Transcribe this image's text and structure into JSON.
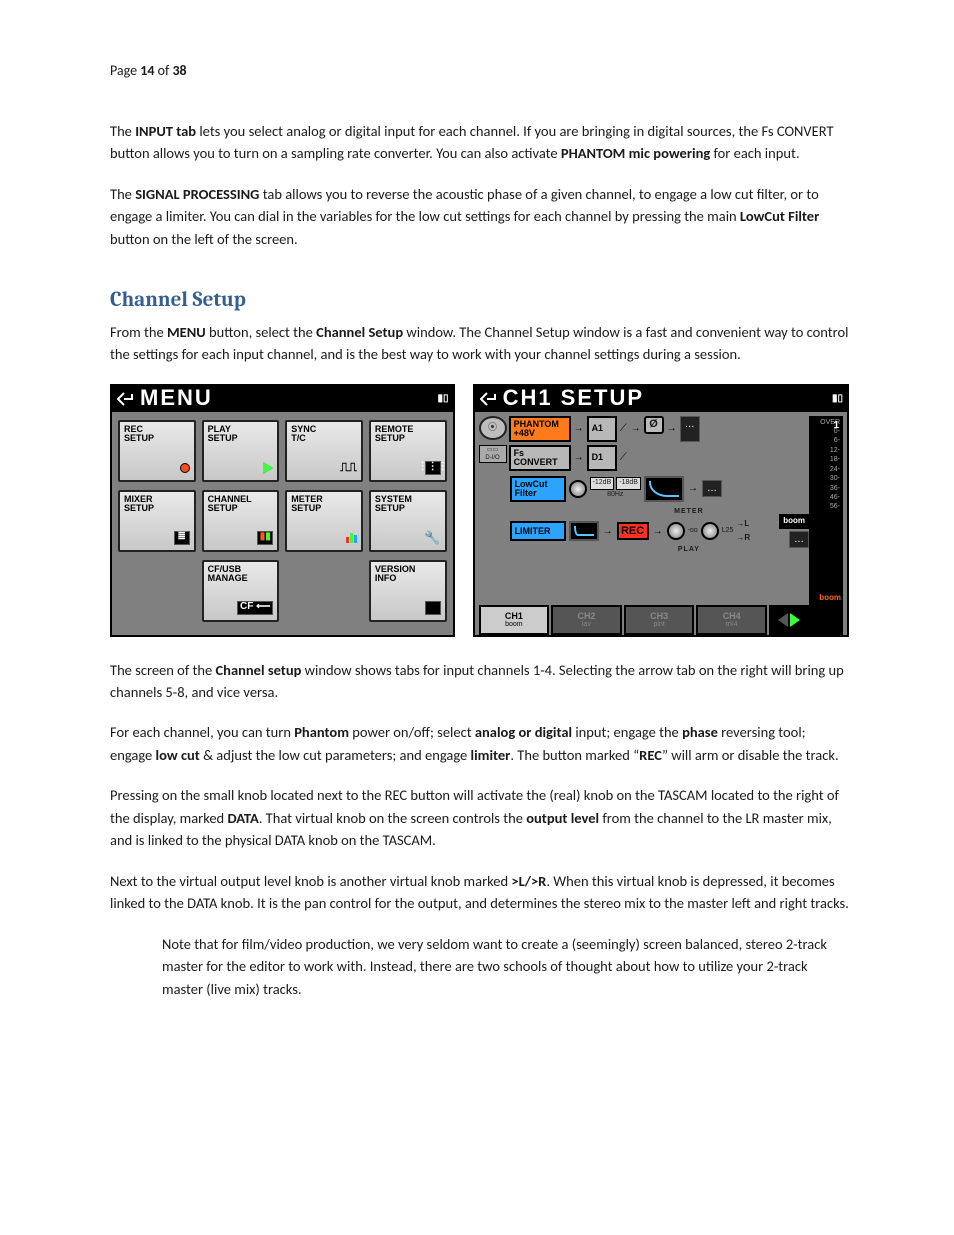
{
  "page_header": {
    "prefix": "Page ",
    "current": "14",
    "mid": " of ",
    "total": "38"
  },
  "para1": {
    "a": "The ",
    "b": "INPUT tab",
    "c": " lets you select analog or digital input for each channel. If you are bringing in digital sources, the Fs CONVERT button allows you to turn on a sampling rate converter. You can also activate ",
    "d": "PHANTOM mic powering",
    "e": " for each input."
  },
  "para2": {
    "a": "The ",
    "b": "SIGNAL PROCESSING",
    "c": " tab allows you to reverse the acoustic phase of a given channel, to engage a low cut filter, or to engage a limiter. You can dial in the variables for the low cut settings for each channel by pressing the main ",
    "d": "LowCut Filter",
    "e": " button on the left of the screen."
  },
  "heading": "Channel Setup",
  "para3": {
    "a": "From the ",
    "b": "MENU",
    "c": " button, select the ",
    "d": "Channel Setup",
    "e": " window. The Channel Setup window is a fast and convenient way to control the settings for each input channel, and is the best way to work with your channel settings during a session."
  },
  "menu_screen": {
    "title": "MENU",
    "buttons": [
      {
        "l1": "REC",
        "l2": "SETUP",
        "icon": "dot-red"
      },
      {
        "l1": "PLAY",
        "l2": "SETUP",
        "icon": "tri-green"
      },
      {
        "l1": "SYNC",
        "l2": "T/C",
        "icon": "wave"
      },
      {
        "l1": "REMOTE",
        "l2": "SETUP",
        "icon": "grid"
      },
      {
        "l1": "MIXER",
        "l2": "SETUP",
        "icon": "sliders"
      },
      {
        "l1": "CHANNEL",
        "l2": "SETUP",
        "icon": "vu"
      },
      {
        "l1": "METER",
        "l2": "SETUP",
        "icon": "bars"
      },
      {
        "l1": "SYSTEM",
        "l2": "SETUP",
        "icon": "wrench"
      },
      null,
      {
        "l1": "CF/USB",
        "l2": "MANAGE",
        "icon": "cfusb"
      },
      null,
      {
        "l1": "VERSION",
        "l2": "INFO",
        "icon": "blank"
      }
    ]
  },
  "ch_screen": {
    "title": "CH1  SETUP",
    "phantom": "PHANTOM",
    "phantom_sub": "+48V",
    "fsconvert": "Fs",
    "fsconvert_sub": "CONVERT",
    "dio": "D-I/O",
    "a1": "A1",
    "d1": "D1",
    "phase": "Ø",
    "lowcut": "LowCut",
    "lowcut_sub": "Filter",
    "hz": "80Hz",
    "db12": "-12dB",
    "db18": "-18dB",
    "limiter": "LIMITER",
    "meter_label": "METER",
    "rec": "REC",
    "play_label": "PLAY",
    "neg_inf": "-oo",
    "pan_center": "L25",
    "lr_l": "→L",
    "lr_r": "→R",
    "boom": "boom",
    "meter_ticks": [
      "OVER",
      "0",
      "6",
      "12",
      "18",
      "24",
      "30",
      "36",
      "46",
      "56"
    ],
    "track_num": "1",
    "tabs": [
      {
        "id": "CH1",
        "sub": "boom",
        "active": true
      },
      {
        "id": "CH2",
        "sub": "lav",
        "active": false
      },
      {
        "id": "CH3",
        "sub": "plnt",
        "active": false
      },
      {
        "id": "CH4",
        "sub": "trk4",
        "active": false
      }
    ]
  },
  "para4": {
    "a": "The screen of the ",
    "b": "Channel setup",
    "c": " window shows tabs for input channels 1-4. Selecting the arrow tab on the right will bring up channels 5-8, and vice versa."
  },
  "para5": {
    "a": "For each channel, you can turn ",
    "b": "Phantom",
    "c": " power on/off; select ",
    "d": "analog or digital",
    "e": " input; engage the ",
    "f": "phase",
    "g": " reversing tool; engage ",
    "h": "low cut",
    "i": " & adjust the low cut parameters; and engage ",
    "j": "limiter",
    "k": ". The button marked “",
    "l": "REC",
    "m": "” will arm or disable the track."
  },
  "para6": {
    "a": "Pressing on the small knob located next to the REC button will activate the (real) knob on the TASCAM located to the right of the display, marked ",
    "b": "DATA",
    "c": ". That virtual knob on the screen controls the ",
    "d": "output level",
    "e": " from the channel to the LR master mix, and is linked to the physical DATA knob on the TASCAM."
  },
  "para7": {
    "a": "Next to the virtual output level knob is another virtual knob marked  ",
    "b": ">L/>R",
    "c": ".  When this virtual knob is depressed, it becomes linked to the DATA knob. It is the pan control for the output, and determines the stereo mix to the master left and right tracks."
  },
  "para8": "Note that for film/video production, we very seldom want to create a (seemingly) screen balanced, stereo 2-track master for the editor to work with. Instead, there are two schools of thought about how to utilize your 2-track master (live mix) tracks.",
  "colors": {
    "heading": "#365f91",
    "orange": "#ff7a1a",
    "blue": "#2aa4ff",
    "red": "#ff3020",
    "green_arrow": "#3cff3c",
    "screen_grey": "#808080"
  }
}
